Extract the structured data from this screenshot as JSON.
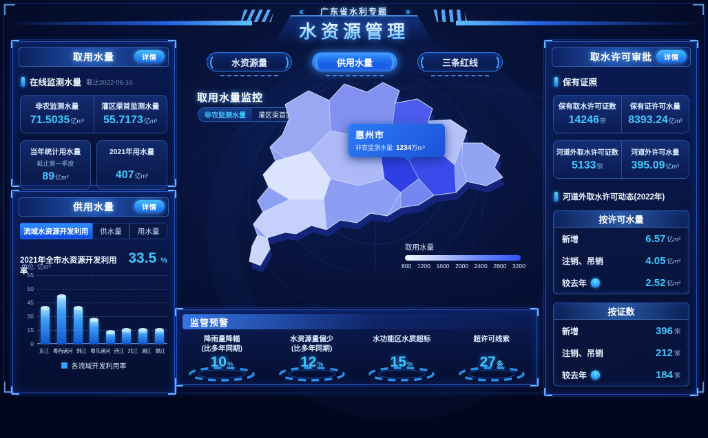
{
  "colors": {
    "accent": "#35a6ff",
    "value_cyan": "#3fc8ff",
    "panel_border": "#2a63d8",
    "map_low": "#f4f7ff",
    "map_high": "#2f55ff"
  },
  "header": {
    "subtitle": "广东省水利专题",
    "title": "水资源管理",
    "left_chevrons": "‹‹",
    "right_chevrons": "››"
  },
  "left_top": {
    "title": "取用水量",
    "detail_label": "详情",
    "section": {
      "label": "在线监测水量",
      "date": "截止2022-06-16"
    },
    "monitor_stats": [
      {
        "label": "非农监测水量",
        "value": "71.5035",
        "unit": "亿m³"
      },
      {
        "label": "灌区渠首监测水量",
        "value": "55.7173",
        "unit": "亿m³"
      }
    ],
    "cards": [
      {
        "label": "当年统计用水量",
        "note": "截止第一季度",
        "value": "89",
        "unit": "亿m³"
      },
      {
        "label": "2021年用水量",
        "note": "",
        "value": "407",
        "unit": "亿m³"
      }
    ]
  },
  "left_bottom": {
    "title": "供用水量",
    "detail_label": "详情",
    "tabs": [
      {
        "label": "流域水资源开发利用",
        "active": true
      },
      {
        "label": "供水量",
        "active": false
      },
      {
        "label": "用水量",
        "active": false
      }
    ],
    "summary": {
      "label": "2021年全市水资源开发利用率",
      "value": "33.5",
      "unit": "%"
    }
  },
  "chart_data": {
    "type": "bar",
    "title": "各流域开发利用率",
    "unit_label": "单位: 亿m³",
    "categories": [
      "东江",
      "粤西诸河",
      "韩江",
      "粤东诸河",
      "西江",
      "北江",
      "湘江",
      "赣江"
    ],
    "values_approx": [
      39,
      47,
      39,
      26,
      13,
      15,
      15,
      15
    ],
    "bar_heights_pct": [
      52,
      69,
      52,
      35,
      17,
      20,
      20,
      20
    ],
    "y_ticks": [
      55,
      50,
      45,
      30,
      15,
      0
    ],
    "legend": "各流域开发利用率",
    "grid": "dashed horizontal",
    "bar_color_top": "#9fe0ff",
    "bar_color_bottom": "#1258d0"
  },
  "center": {
    "tabs": [
      {
        "label": "水资源量",
        "active": false
      },
      {
        "label": "供用水量",
        "active": true
      },
      {
        "label": "三条红线",
        "active": false
      }
    ],
    "monitor": {
      "title": "取用水量监控",
      "toggles": [
        {
          "label": "非农监测水量",
          "active": true
        },
        {
          "label": "灌区渠首监测水量",
          "active": false
        }
      ]
    },
    "tooltip": {
      "city": "惠州市",
      "label": "非农监测水量: ",
      "value": "1234",
      "unit": "万m³"
    },
    "map_legend": {
      "label": "取用水量",
      "ticks": [
        "800",
        "1200",
        "1600",
        "2000",
        "2400",
        "2800",
        "3200"
      ]
    },
    "alerts": {
      "title": "监管预警",
      "items": [
        {
          "label": "降雨量降幅",
          "sub": "(比多年同期)",
          "value": "10",
          "unit": "%"
        },
        {
          "label": "水资源量偏少",
          "sub": "(比多年同期)",
          "value": "12",
          "unit": "%"
        },
        {
          "label": "水功能区水质超标",
          "sub": "",
          "value": "15",
          "unit": "%"
        },
        {
          "label": "超许可线索",
          "sub": "",
          "value": "27",
          "unit": "条"
        }
      ]
    }
  },
  "right": {
    "title": "取水许可审批",
    "detail_label": "详情",
    "section1": "保有证照",
    "hold_stats": [
      {
        "label": "保有取水许可证数",
        "value": "14246",
        "unit": "宗"
      },
      {
        "label": "保有证许可水量",
        "value": "8393.24",
        "unit": "亿m³"
      }
    ],
    "river_stats": [
      {
        "label": "河道外取水许可证数",
        "value": "5133",
        "unit": "宗"
      },
      {
        "label": "河道外许可水量",
        "value": "395.09",
        "unit": "亿m³"
      }
    ],
    "section2": "河道外取水许可动态(2022年)",
    "by_volume": {
      "title": "按许可水量",
      "rows": [
        {
          "label": "新增",
          "value": "6.57",
          "unit": "亿m³",
          "up": false
        },
        {
          "label": "注销、吊销",
          "value": "4.05",
          "unit": "亿m³",
          "up": false
        },
        {
          "label": "较去年",
          "value": "2.52",
          "unit": "亿m³",
          "up": true
        }
      ]
    },
    "by_count": {
      "title": "按证数",
      "rows": [
        {
          "label": "新增",
          "value": "396",
          "unit": "宗",
          "up": false
        },
        {
          "label": "注销、吊销",
          "value": "212",
          "unit": "宗",
          "up": false
        },
        {
          "label": "较去年",
          "value": "184",
          "unit": "宗",
          "up": true
        }
      ]
    }
  }
}
